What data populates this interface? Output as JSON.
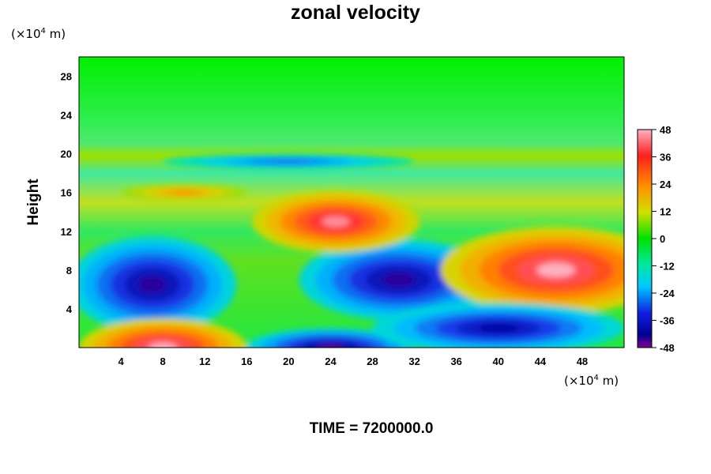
{
  "chart_data": {
    "type": "heatmap",
    "title": "zonal velocity",
    "ylabel": "Height",
    "xlabel": "",
    "x_unit": "(×10⁴ m)",
    "y_unit": "(×10⁴ m)",
    "xlim": [
      0,
      52
    ],
    "ylim": [
      0,
      30
    ],
    "x_ticks": [
      4,
      8,
      12,
      16,
      20,
      24,
      28,
      32,
      36,
      40,
      44,
      48
    ],
    "y_ticks": [
      4,
      8,
      12,
      16,
      20,
      24,
      28
    ],
    "colorbar": {
      "min": -48,
      "max": 48,
      "ticks": [
        48,
        36,
        24,
        12,
        0,
        -12,
        -24,
        -36,
        -48
      ],
      "colormap": "rainbow (purple-blue-cyan-green-yellow-red-pink)"
    },
    "features": [
      {
        "x": 7,
        "y": 6.5,
        "value": -44
      },
      {
        "x": 30.5,
        "y": 7,
        "value": -44
      },
      {
        "x": 45.5,
        "y": 8,
        "value": 48
      },
      {
        "x": 8,
        "y": 0,
        "value": 48
      },
      {
        "x": 24,
        "y": 0,
        "value": -46
      },
      {
        "x": 40,
        "y": 2,
        "value": -42
      },
      {
        "x": 24.5,
        "y": 13,
        "value": 46
      },
      {
        "x": 20,
        "y": 19.2,
        "value": -30
      },
      {
        "x": 10,
        "y": 16,
        "value": 30
      }
    ],
    "footer": "TIME = 7200000.0"
  }
}
